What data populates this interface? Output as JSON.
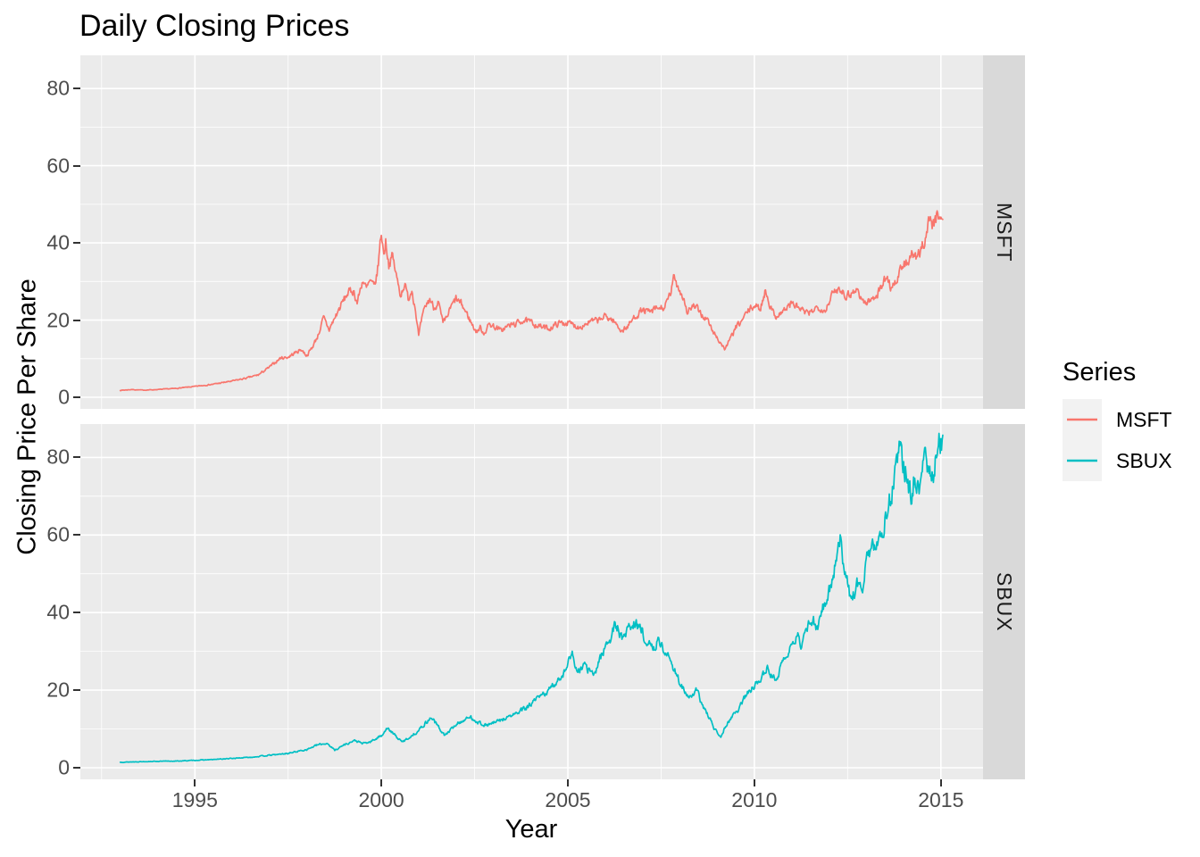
{
  "title": "Daily Closing Prices",
  "axes": {
    "x_label": "Year",
    "y_label": "Closing Price Per Share",
    "x_tick_values": [
      1995,
      2000,
      2005,
      2010,
      2015
    ],
    "x_tick_labels": [
      "1995",
      "2000",
      "2005",
      "2010",
      "2015"
    ],
    "x_minor_values": [
      1992.5,
      1997.5,
      2002.5,
      2007.5,
      2012.5
    ],
    "y_tick_values": [
      0,
      20,
      40,
      60,
      80
    ],
    "y_tick_labels": [
      "0",
      "20",
      "40",
      "60",
      "80"
    ],
    "y_minor_values": [
      10,
      30,
      50,
      70
    ]
  },
  "facets": [
    {
      "label": "MSFT"
    },
    {
      "label": "SBUX"
    }
  ],
  "legend": {
    "title": "Series",
    "entries": [
      {
        "label": "MSFT",
        "color": "#F8766D"
      },
      {
        "label": "SBUX",
        "color": "#00BFC4"
      }
    ]
  },
  "colors": {
    "panel_bg": "#EBEBEB",
    "strip_bg": "#D9D9D9",
    "strip_text": "#1A1A1A",
    "grid": "#FFFFFF",
    "tick_text": "#4D4D4D",
    "key_bg": "#F2F2F2",
    "msft": "#F8766D",
    "sbux": "#00BFC4"
  },
  "chart_data": {
    "type": "line",
    "title": "Daily Closing Prices",
    "xlabel": "Year",
    "ylabel": "Closing Price Per Share",
    "facet_variable": "Series",
    "x_range": [
      1991.93,
      2016.13
    ],
    "y_range": [
      -3,
      88.6
    ],
    "grid": "on",
    "legend_position": "right",
    "series": [
      {
        "name": "MSFT",
        "facet": "MSFT",
        "color": "#F8766D",
        "anchors": [
          [
            1993.0,
            1.8
          ],
          [
            1993.3,
            2.0
          ],
          [
            1993.6,
            1.85
          ],
          [
            1994.0,
            2.0
          ],
          [
            1994.5,
            2.3
          ],
          [
            1995.0,
            2.8
          ],
          [
            1995.5,
            3.4
          ],
          [
            1996.0,
            4.2
          ],
          [
            1996.4,
            5.0
          ],
          [
            1996.7,
            5.8
          ],
          [
            1997.0,
            7.8
          ],
          [
            1997.3,
            10.2
          ],
          [
            1997.5,
            10.4
          ],
          [
            1997.7,
            11.6
          ],
          [
            1997.85,
            12.4
          ],
          [
            1998.0,
            10.8
          ],
          [
            1998.15,
            13.0
          ],
          [
            1998.3,
            16.0
          ],
          [
            1998.45,
            20.5
          ],
          [
            1998.6,
            17.5
          ],
          [
            1998.8,
            21.5
          ],
          [
            1998.95,
            24.5
          ],
          [
            1999.1,
            27.0
          ],
          [
            1999.25,
            27.7
          ],
          [
            1999.35,
            24.5
          ],
          [
            1999.5,
            30.5
          ],
          [
            1999.6,
            28.0
          ],
          [
            1999.7,
            30.0
          ],
          [
            1999.8,
            28.5
          ],
          [
            1999.88,
            31.5
          ],
          [
            1999.94,
            37.0
          ],
          [
            2000.0,
            43.0
          ],
          [
            2000.06,
            37.0
          ],
          [
            2000.12,
            40.5
          ],
          [
            2000.2,
            34.5
          ],
          [
            2000.3,
            36.5
          ],
          [
            2000.42,
            30.5
          ],
          [
            2000.52,
            26.5
          ],
          [
            2000.62,
            29.5
          ],
          [
            2000.72,
            25.5
          ],
          [
            2000.82,
            28.0
          ],
          [
            2000.92,
            22.5
          ],
          [
            2001.0,
            15.8
          ],
          [
            2001.08,
            20.0
          ],
          [
            2001.18,
            23.5
          ],
          [
            2001.3,
            25.5
          ],
          [
            2001.42,
            23.0
          ],
          [
            2001.52,
            25.0
          ],
          [
            2001.65,
            19.0
          ],
          [
            2001.75,
            20.5
          ],
          [
            2001.85,
            23.0
          ],
          [
            2002.0,
            25.5
          ],
          [
            2002.15,
            24.0
          ],
          [
            2002.3,
            21.5
          ],
          [
            2002.45,
            18.5
          ],
          [
            2002.55,
            17.0
          ],
          [
            2002.65,
            18.0
          ],
          [
            2002.75,
            16.6
          ],
          [
            2002.9,
            19.0
          ],
          [
            2003.05,
            18.2
          ],
          [
            2003.2,
            17.3
          ],
          [
            2003.4,
            18.5
          ],
          [
            2003.6,
            19.0
          ],
          [
            2003.8,
            20.0
          ],
          [
            2004.0,
            19.4
          ],
          [
            2004.3,
            18.2
          ],
          [
            2004.5,
            17.8
          ],
          [
            2004.75,
            19.2
          ],
          [
            2005.0,
            19.3
          ],
          [
            2005.3,
            18.2
          ],
          [
            2005.6,
            19.6
          ],
          [
            2005.85,
            20.0
          ],
          [
            2006.0,
            21.0
          ],
          [
            2006.2,
            20.0
          ],
          [
            2006.45,
            17.2
          ],
          [
            2006.6,
            18.3
          ],
          [
            2006.8,
            21.0
          ],
          [
            2007.0,
            22.6
          ],
          [
            2007.2,
            22.0
          ],
          [
            2007.4,
            23.0
          ],
          [
            2007.6,
            23.2
          ],
          [
            2007.75,
            26.8
          ],
          [
            2007.85,
            31.2
          ],
          [
            2007.95,
            28.8
          ],
          [
            2008.1,
            25.8
          ],
          [
            2008.2,
            22.0
          ],
          [
            2008.35,
            23.6
          ],
          [
            2008.5,
            22.6
          ],
          [
            2008.62,
            21.0
          ],
          [
            2008.75,
            20.0
          ],
          [
            2008.85,
            17.6
          ],
          [
            2009.0,
            15.5
          ],
          [
            2009.1,
            14.0
          ],
          [
            2009.2,
            12.5
          ],
          [
            2009.35,
            15.0
          ],
          [
            2009.5,
            18.0
          ],
          [
            2009.65,
            19.6
          ],
          [
            2009.8,
            22.0
          ],
          [
            2010.0,
            23.8
          ],
          [
            2010.15,
            22.8
          ],
          [
            2010.3,
            27.8
          ],
          [
            2010.45,
            23.0
          ],
          [
            2010.55,
            21.0
          ],
          [
            2010.7,
            21.8
          ],
          [
            2010.85,
            23.0
          ],
          [
            2011.0,
            24.4
          ],
          [
            2011.15,
            23.4
          ],
          [
            2011.3,
            22.4
          ],
          [
            2011.45,
            21.4
          ],
          [
            2011.6,
            23.0
          ],
          [
            2011.75,
            23.4
          ],
          [
            2011.9,
            22.4
          ],
          [
            2012.0,
            25.0
          ],
          [
            2012.15,
            27.4
          ],
          [
            2012.3,
            28.4
          ],
          [
            2012.45,
            26.4
          ],
          [
            2012.6,
            27.0
          ],
          [
            2012.75,
            28.0
          ],
          [
            2012.9,
            25.0
          ],
          [
            2013.0,
            24.4
          ],
          [
            2013.15,
            25.4
          ],
          [
            2013.3,
            27.0
          ],
          [
            2013.45,
            29.4
          ],
          [
            2013.55,
            31.6
          ],
          [
            2013.65,
            28.6
          ],
          [
            2013.8,
            30.0
          ],
          [
            2013.95,
            33.5
          ],
          [
            2014.1,
            35.0
          ],
          [
            2014.25,
            37.0
          ],
          [
            2014.35,
            35.4
          ],
          [
            2014.5,
            39.0
          ],
          [
            2014.6,
            42.0
          ],
          [
            2014.7,
            47.4
          ],
          [
            2014.78,
            44.0
          ],
          [
            2014.88,
            46.8
          ],
          [
            2014.97,
            48.2
          ],
          [
            2015.05,
            45.8
          ]
        ]
      },
      {
        "name": "SBUX",
        "facet": "SBUX",
        "color": "#00BFC4",
        "anchors": [
          [
            1993.0,
            1.4
          ],
          [
            1993.5,
            1.55
          ],
          [
            1994.0,
            1.65
          ],
          [
            1994.5,
            1.7
          ],
          [
            1995.0,
            1.9
          ],
          [
            1995.5,
            2.1
          ],
          [
            1996.0,
            2.4
          ],
          [
            1996.5,
            2.7
          ],
          [
            1997.0,
            3.2
          ],
          [
            1997.5,
            3.7
          ],
          [
            1998.0,
            4.7
          ],
          [
            1998.3,
            5.9
          ],
          [
            1998.55,
            6.3
          ],
          [
            1998.75,
            4.5
          ],
          [
            1999.0,
            5.9
          ],
          [
            1999.3,
            7.0
          ],
          [
            1999.5,
            6.2
          ],
          [
            1999.7,
            6.6
          ],
          [
            2000.0,
            8.3
          ],
          [
            2000.15,
            10.2
          ],
          [
            2000.35,
            8.5
          ],
          [
            2000.55,
            6.6
          ],
          [
            2000.8,
            8.1
          ],
          [
            2001.0,
            9.6
          ],
          [
            2001.2,
            11.7
          ],
          [
            2001.35,
            13.0
          ],
          [
            2001.55,
            10.2
          ],
          [
            2001.7,
            8.3
          ],
          [
            2001.9,
            10.1
          ],
          [
            2002.0,
            11.2
          ],
          [
            2002.2,
            12.2
          ],
          [
            2002.4,
            13.0
          ],
          [
            2002.6,
            11.7
          ],
          [
            2002.8,
            10.9
          ],
          [
            2003.0,
            11.5
          ],
          [
            2003.3,
            12.6
          ],
          [
            2003.6,
            13.9
          ],
          [
            2003.9,
            15.5
          ],
          [
            2004.2,
            17.9
          ],
          [
            2004.5,
            20.0
          ],
          [
            2004.8,
            23.3
          ],
          [
            2005.0,
            26.5
          ],
          [
            2005.1,
            30.4
          ],
          [
            2005.25,
            24.0
          ],
          [
            2005.4,
            26.4
          ],
          [
            2005.55,
            25.3
          ],
          [
            2005.7,
            23.7
          ],
          [
            2005.85,
            28.0
          ],
          [
            2006.0,
            31.2
          ],
          [
            2006.15,
            33.8
          ],
          [
            2006.3,
            37.0
          ],
          [
            2006.45,
            33.1
          ],
          [
            2006.6,
            35.8
          ],
          [
            2006.8,
            37.4
          ],
          [
            2007.0,
            34.9
          ],
          [
            2007.15,
            31.4
          ],
          [
            2007.3,
            30.9
          ],
          [
            2007.45,
            32.9
          ],
          [
            2007.6,
            29.8
          ],
          [
            2007.8,
            26.7
          ],
          [
            2008.0,
            22.1
          ],
          [
            2008.15,
            19.0
          ],
          [
            2008.3,
            17.9
          ],
          [
            2008.45,
            20.0
          ],
          [
            2008.6,
            16.3
          ],
          [
            2008.8,
            12.6
          ],
          [
            2008.95,
            9.7
          ],
          [
            2009.1,
            8.2
          ],
          [
            2009.25,
            11.1
          ],
          [
            2009.4,
            13.2
          ],
          [
            2009.55,
            14.8
          ],
          [
            2009.7,
            17.4
          ],
          [
            2009.85,
            19.5
          ],
          [
            2010.0,
            21.0
          ],
          [
            2010.2,
            23.9
          ],
          [
            2010.35,
            25.4
          ],
          [
            2010.5,
            22.8
          ],
          [
            2010.65,
            24.4
          ],
          [
            2010.8,
            27.5
          ],
          [
            2011.0,
            31.5
          ],
          [
            2011.15,
            34.0
          ],
          [
            2011.25,
            32.0
          ],
          [
            2011.4,
            35.2
          ],
          [
            2011.55,
            38.3
          ],
          [
            2011.7,
            36.2
          ],
          [
            2011.85,
            41.4
          ],
          [
            2012.0,
            45.9
          ],
          [
            2012.1,
            49.5
          ],
          [
            2012.2,
            54.0
          ],
          [
            2012.3,
            59.7
          ],
          [
            2012.38,
            52.5
          ],
          [
            2012.5,
            48.8
          ],
          [
            2012.6,
            42.4
          ],
          [
            2012.7,
            46.3
          ],
          [
            2012.8,
            48.4
          ],
          [
            2012.9,
            46.8
          ],
          [
            2013.0,
            53.2
          ],
          [
            2013.15,
            55.6
          ],
          [
            2013.3,
            58.7
          ],
          [
            2013.45,
            61.8
          ],
          [
            2013.55,
            66.5
          ],
          [
            2013.7,
            71.2
          ],
          [
            2013.8,
            77.4
          ],
          [
            2013.88,
            82.1
          ],
          [
            2014.0,
            78.0
          ],
          [
            2014.1,
            75.4
          ],
          [
            2014.2,
            69.0
          ],
          [
            2014.3,
            76.2
          ],
          [
            2014.4,
            70.8
          ],
          [
            2014.55,
            80.5
          ],
          [
            2014.65,
            77.8
          ],
          [
            2014.75,
            73.6
          ],
          [
            2014.85,
            78.8
          ],
          [
            2014.97,
            84.4
          ],
          [
            2015.05,
            82.8
          ]
        ]
      }
    ]
  }
}
